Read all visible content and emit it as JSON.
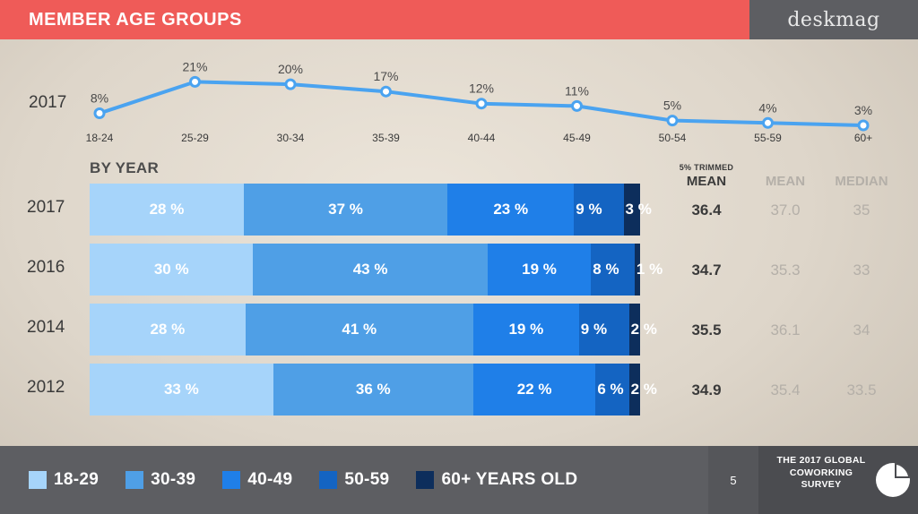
{
  "header": {
    "title": "MEMBER AGE GROUPS",
    "logo": "deskmag"
  },
  "colors": {
    "header_red": "#ef5b58",
    "line_blue": "#4aa3f0",
    "age_18_29": "#a6d4fa",
    "age_30_39": "#4f9fe6",
    "age_40_49": "#1f7fe8",
    "age_50_59": "#1464c2",
    "age_60_plus": "#0d2e5c"
  },
  "chart_data": [
    {
      "type": "line",
      "series_name": "2017",
      "categories": [
        "18-24",
        "25-29",
        "30-34",
        "35-39",
        "40-44",
        "45-49",
        "50-54",
        "55-59",
        "60+"
      ],
      "values": [
        8,
        21,
        20,
        17,
        12,
        11,
        5,
        4,
        3
      ],
      "labels": [
        "8%",
        "21%",
        "20%",
        "17%",
        "12%",
        "11%",
        "5%",
        "4%",
        "3%"
      ]
    },
    {
      "type": "bar",
      "orientation": "horizontal",
      "stacked": true,
      "title": "BY YEAR",
      "categories": [
        "2017",
        "2016",
        "2014",
        "2012"
      ],
      "series": [
        {
          "name": "18-29",
          "values": [
            28,
            30,
            28,
            33
          ]
        },
        {
          "name": "30-39",
          "values": [
            37,
            43,
            41,
            36
          ]
        },
        {
          "name": "40-49",
          "values": [
            23,
            19,
            19,
            22
          ]
        },
        {
          "name": "50-59",
          "values": [
            9,
            8,
            9,
            6
          ]
        },
        {
          "name": "60+ YEARS OLD",
          "values": [
            3,
            1,
            2,
            2
          ]
        }
      ],
      "value_labels": [
        [
          "28 %",
          "37 %",
          "23 %",
          "9 %",
          "3 %"
        ],
        [
          "30 %",
          "43 %",
          "19 %",
          "8 %",
          "1 %"
        ],
        [
          "28 %",
          "41 %",
          "19 %",
          "9 %",
          "2 %"
        ],
        [
          "33 %",
          "36 %",
          "22 %",
          "6 %",
          "2 %"
        ]
      ],
      "legend_position": "bottom"
    }
  ],
  "stats": {
    "headers": {
      "trimmed_small": "5% TRIMMED",
      "trimmed_big": "MEAN",
      "mean": "MEAN",
      "median": "MEDIAN"
    },
    "rows": [
      {
        "year": "2017",
        "trimmed": "36.4",
        "mean": "37.0",
        "median": "35"
      },
      {
        "year": "2016",
        "trimmed": "34.7",
        "mean": "35.3",
        "median": "33"
      },
      {
        "year": "2014",
        "trimmed": "35.5",
        "mean": "36.1",
        "median": "34"
      },
      {
        "year": "2012",
        "trimmed": "34.9",
        "mean": "35.4",
        "median": "33.5"
      }
    ]
  },
  "footer": {
    "page_number": "5",
    "survey_text": "THE 2017 GLOBAL COWORKING SURVEY",
    "survey_icon": "pie-chart-icon"
  }
}
